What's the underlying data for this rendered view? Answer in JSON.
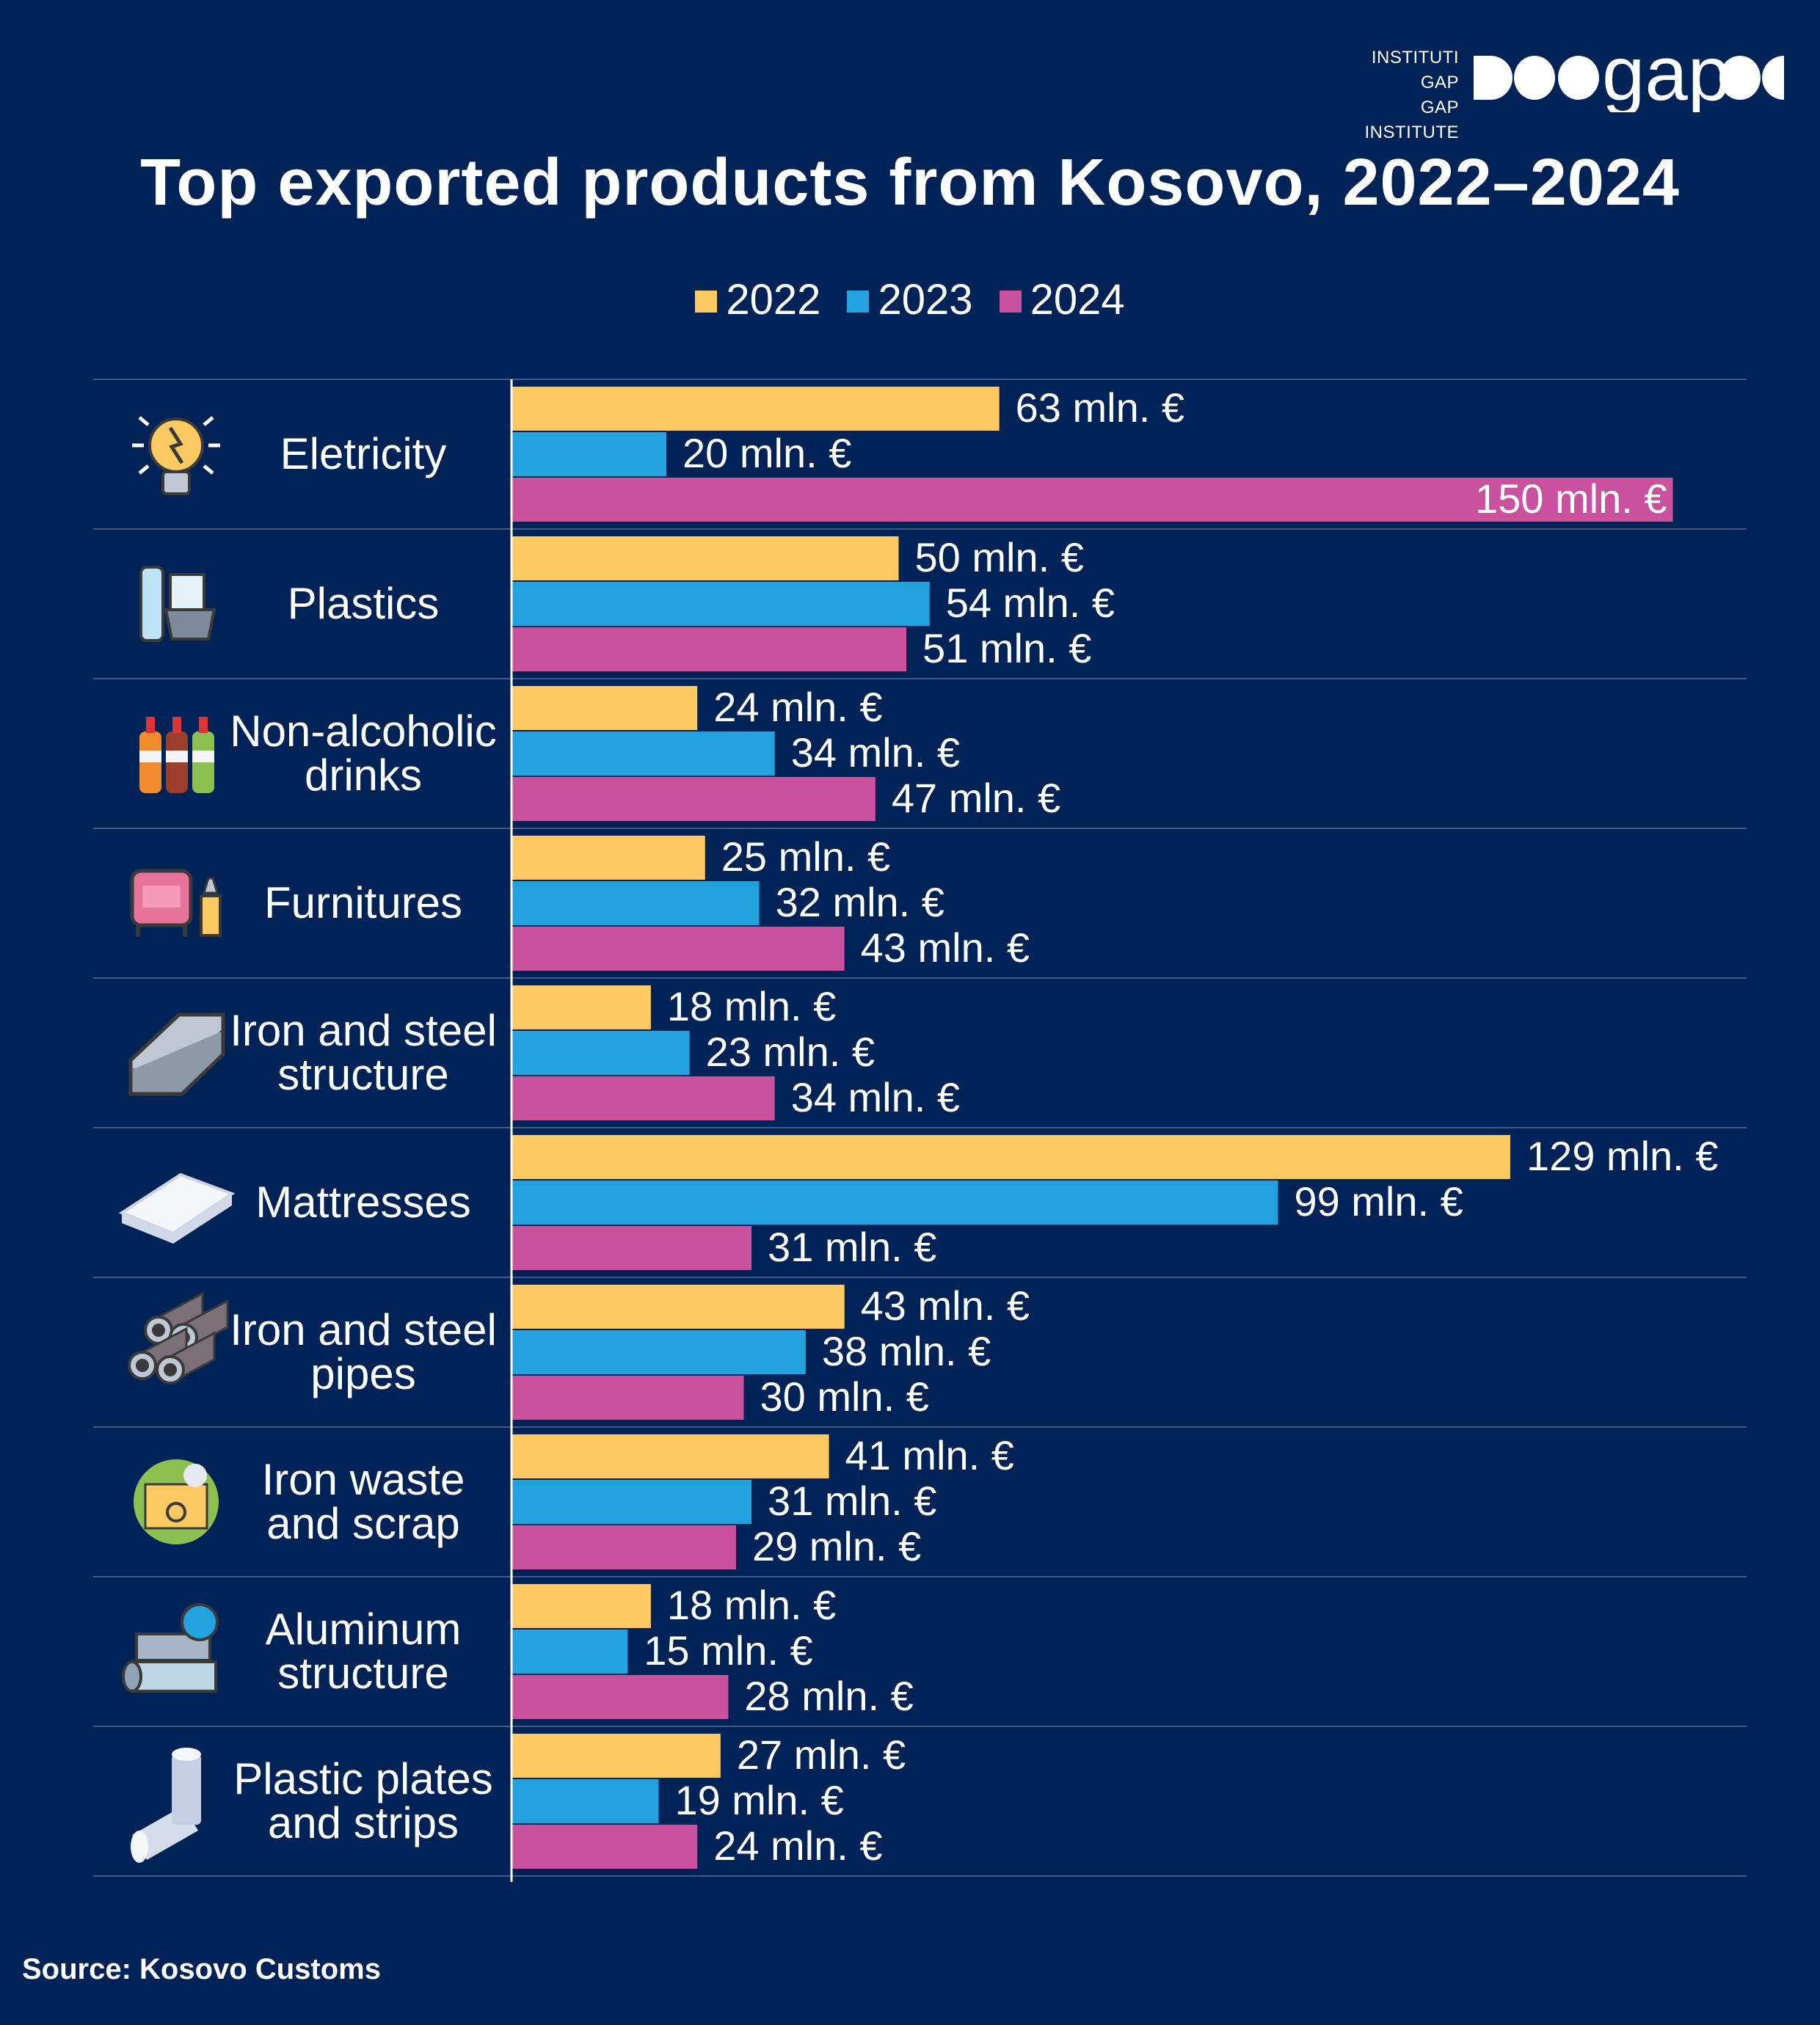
{
  "logo": {
    "line1": "INSTITUTI GAP",
    "line2": "GAP INSTITUTE",
    "wordmark": "gap"
  },
  "source": "Source: Kosovo Customs",
  "colors": {
    "background": "#002357",
    "2022": "#FDC962",
    "2023": "#22A3DF",
    "2024": "#C9519E",
    "grid": "#3F5A86"
  },
  "chart_data": {
    "type": "bar",
    "orientation": "horizontal",
    "title": "Top exported products from Kosovo, 2022–2024",
    "legend_position": "top",
    "unit_suffix": " mln. €",
    "categories": [
      {
        "label": [
          "Eletricity"
        ],
        "icon": "lightbulb-icon"
      },
      {
        "label": [
          "Plastics"
        ],
        "icon": "plastic-containers-icon"
      },
      {
        "label": [
          "Non-alcoholic",
          "drinks"
        ],
        "icon": "soda-bottles-icon"
      },
      {
        "label": [
          "Furnitures"
        ],
        "icon": "armchair-icon"
      },
      {
        "label": [
          "Iron and steel",
          "structure"
        ],
        "icon": "steel-beam-icon"
      },
      {
        "label": [
          "Mattresses"
        ],
        "icon": "mattress-icon"
      },
      {
        "label": [
          "Iron and steel",
          "pipes"
        ],
        "icon": "pipes-icon"
      },
      {
        "label": [
          "Iron waste",
          "and scrap"
        ],
        "icon": "scrap-bin-icon"
      },
      {
        "label": [
          "Aluminum",
          "structure"
        ],
        "icon": "aluminum-rolls-icon"
      },
      {
        "label": [
          "Plastic plates",
          "and strips"
        ],
        "icon": "plastic-tube-icon"
      }
    ],
    "series": [
      {
        "name": "2022",
        "values": [
          63,
          50,
          24,
          25,
          18,
          129,
          43,
          41,
          18,
          27
        ]
      },
      {
        "name": "2023",
        "values": [
          20,
          54,
          34,
          32,
          23,
          99,
          38,
          31,
          15,
          19
        ]
      },
      {
        "name": "2024",
        "values": [
          150,
          51,
          47,
          43,
          34,
          31,
          30,
          29,
          28,
          24
        ]
      }
    ]
  }
}
